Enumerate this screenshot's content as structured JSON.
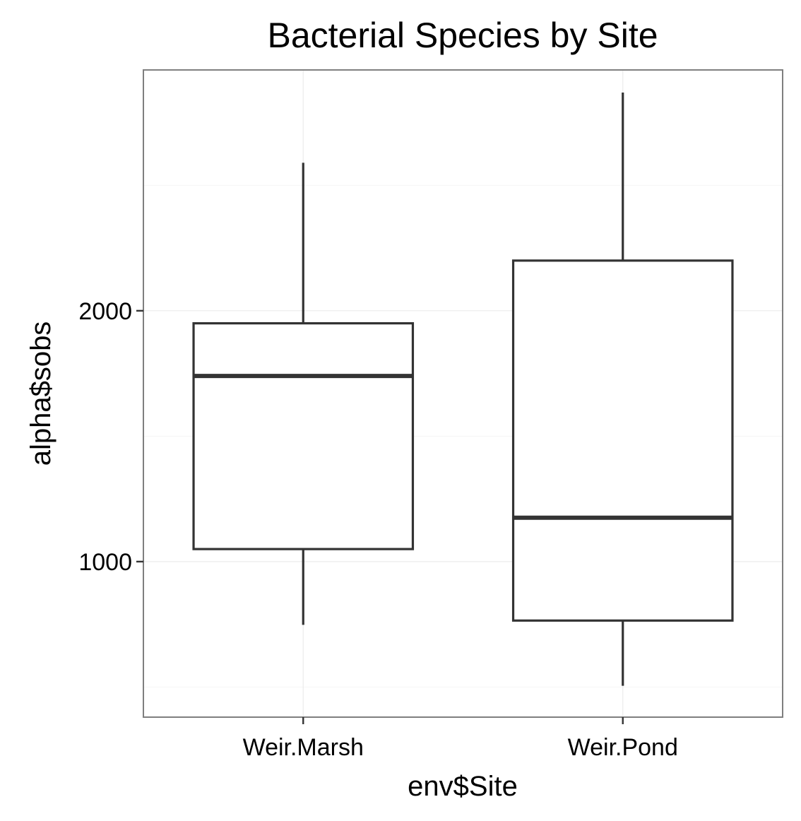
{
  "chart_data": {
    "type": "boxplot",
    "title": "Bacterial Species by Site",
    "xlabel": "env$Site",
    "ylabel": "alpha$sobs",
    "categories": [
      "Weir.Marsh",
      "Weir.Pond"
    ],
    "boxes": [
      {
        "category": "Weir.Marsh",
        "whisker_low": 748,
        "q1": 1050,
        "median": 1740,
        "q3": 1950,
        "whisker_high": 2590
      },
      {
        "category": "Weir.Pond",
        "whisker_low": 505,
        "q1": 765,
        "median": 1175,
        "q3": 2200,
        "whisker_high": 2870
      }
    ],
    "ylim": [
      380,
      2960
    ],
    "y_ticks": [
      1000,
      2000
    ],
    "y_tick_labels": [
      "1000",
      "2000"
    ],
    "y_minor_ticks": [
      500,
      1500,
      2500
    ],
    "grid": true,
    "legend": "none",
    "colors": {
      "box_line": "#333333",
      "box_fill": "#ffffff",
      "panel_border": "#7f7f7f",
      "grid_major": "#ebebeb",
      "grid_minor": "#f4f4f4"
    }
  }
}
